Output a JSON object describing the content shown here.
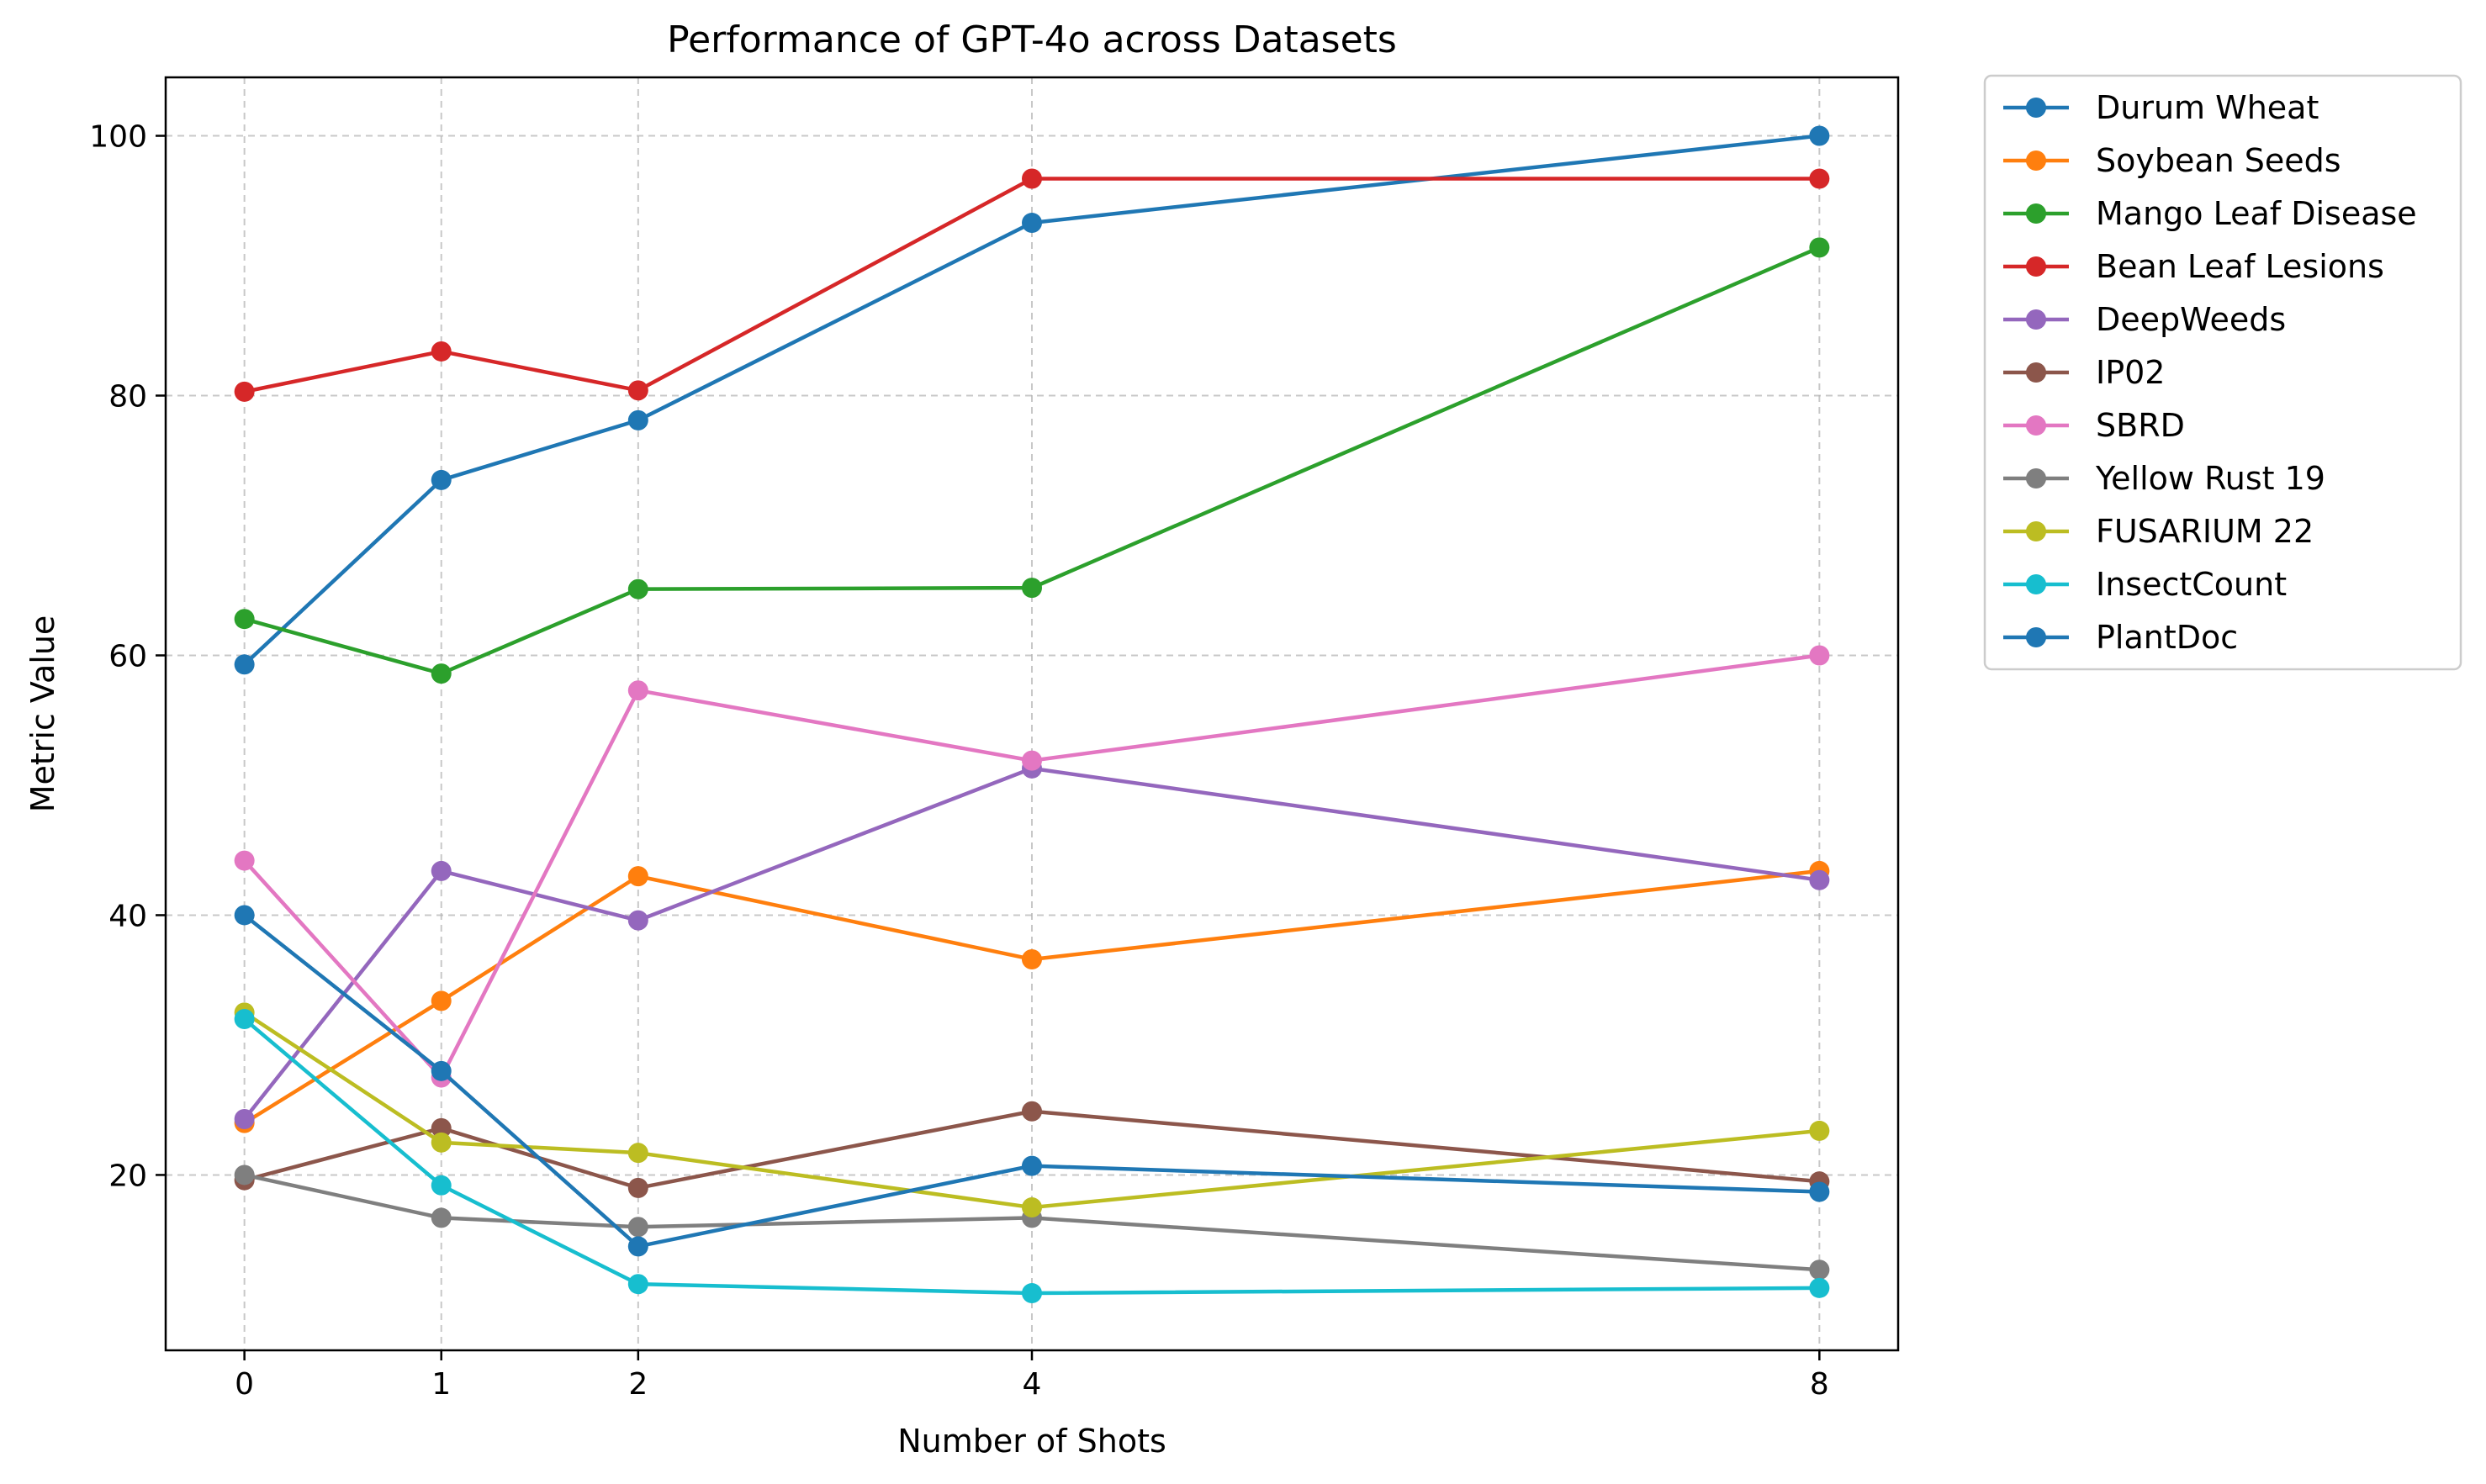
{
  "chart_data": {
    "type": "line",
    "title": "Performance of GPT-4o across Datasets",
    "xlabel": "Number of Shots",
    "ylabel": "Metric Value",
    "x": [
      0,
      1,
      2,
      4,
      8
    ],
    "xticks": [
      "0",
      "1",
      "2",
      "4",
      "8"
    ],
    "yticks": [
      20,
      40,
      60,
      80,
      100
    ],
    "xlim": [
      -0.4,
      8.4
    ],
    "ylim": [
      6.5,
      104.5
    ],
    "grid": true,
    "grid_style": "dashed",
    "legend_position": "outside-right",
    "markers": "circle",
    "series": [
      {
        "name": "Durum Wheat",
        "color": "#1f77b4",
        "values": [
          59.3,
          73.5,
          78.1,
          93.3,
          100.0
        ]
      },
      {
        "name": "Soybean Seeds",
        "color": "#ff7f0e",
        "values": [
          24.0,
          33.4,
          43.0,
          36.6,
          43.4
        ]
      },
      {
        "name": "Mango Leaf Disease",
        "color": "#2ca02c",
        "values": [
          62.8,
          58.6,
          65.1,
          65.2,
          91.4
        ]
      },
      {
        "name": "Bean Leaf Lesions",
        "color": "#d62728",
        "values": [
          80.3,
          83.4,
          80.4,
          96.7,
          96.7
        ]
      },
      {
        "name": "DeepWeeds",
        "color": "#9467bd",
        "values": [
          24.3,
          43.4,
          39.6,
          51.3,
          42.7
        ]
      },
      {
        "name": "IP02",
        "color": "#8c564b",
        "values": [
          19.6,
          23.6,
          19.0,
          24.9,
          19.5
        ]
      },
      {
        "name": "SBRD",
        "color": "#e377c2",
        "values": [
          44.2,
          27.5,
          57.3,
          51.9,
          60.0
        ]
      },
      {
        "name": "Yellow Rust 19",
        "color": "#7f7f7f",
        "values": [
          20.0,
          16.7,
          16.0,
          16.7,
          12.7
        ]
      },
      {
        "name": "FUSARIUM 22",
        "color": "#bcbd22",
        "values": [
          32.5,
          22.5,
          21.7,
          17.5,
          23.4
        ]
      },
      {
        "name": "InsectCount",
        "color": "#17becf",
        "values": [
          32.0,
          19.2,
          11.6,
          10.9,
          11.3
        ]
      },
      {
        "name": "PlantDoc",
        "color": "#1f77b4",
        "values": [
          40.0,
          28.0,
          14.5,
          20.7,
          18.7
        ]
      }
    ]
  }
}
